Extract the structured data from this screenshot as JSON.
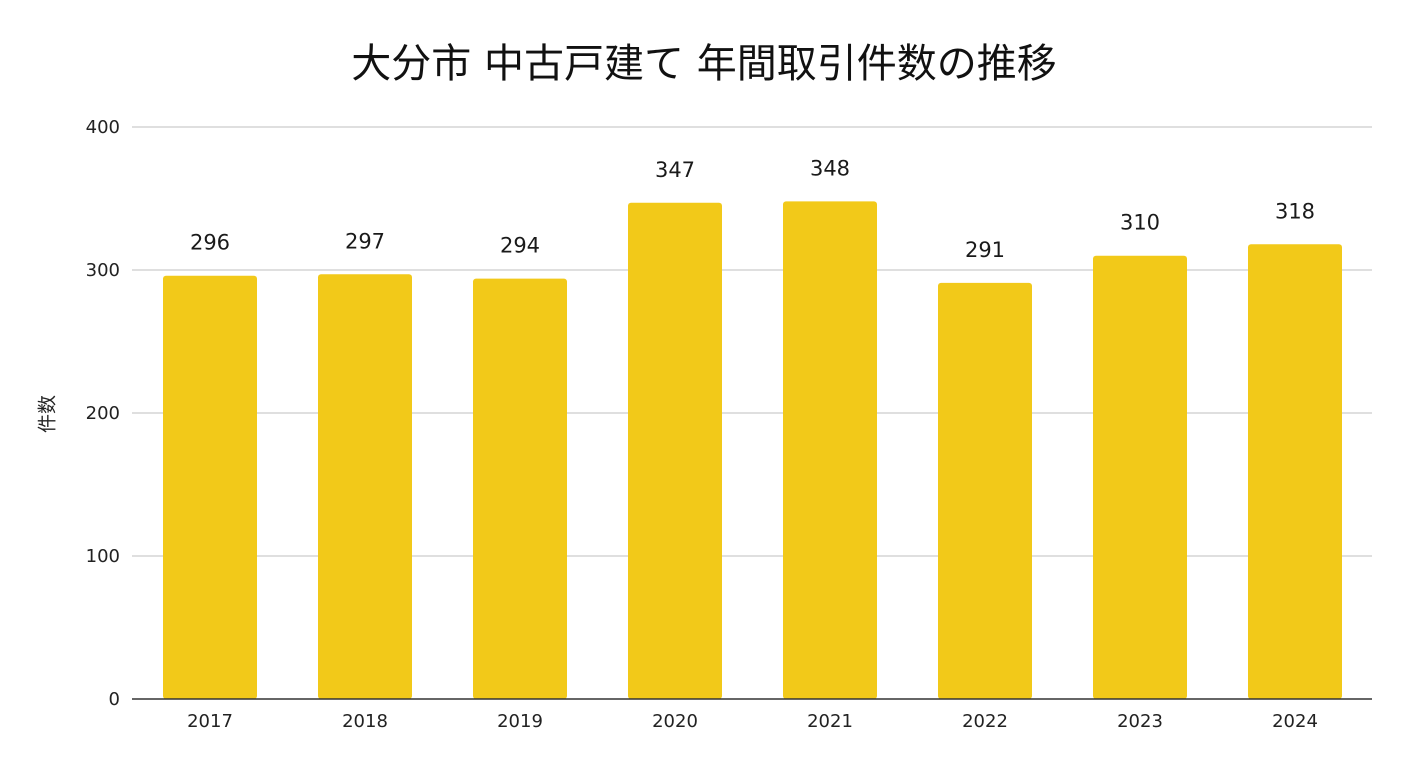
{
  "chart_data": {
    "type": "bar",
    "title": "大分市 中古戸建て 年間取引件数の推移",
    "xlabel": "",
    "ylabel": "件数",
    "categories": [
      "2017",
      "2018",
      "2019",
      "2020",
      "2021",
      "2022",
      "2023",
      "2024"
    ],
    "values": [
      296,
      297,
      294,
      347,
      348,
      291,
      310,
      318
    ],
    "value_labels": [
      "296",
      "297",
      "294",
      "347",
      "348",
      "291",
      "310",
      "318"
    ],
    "ylim": [
      0,
      400
    ],
    "yticks": [
      "0",
      "100",
      "200",
      "300",
      "400"
    ],
    "grid": true,
    "legend": "none",
    "bar_color": "#F2C919",
    "grid_color": "#cccccc",
    "axis_color": "#333333"
  }
}
